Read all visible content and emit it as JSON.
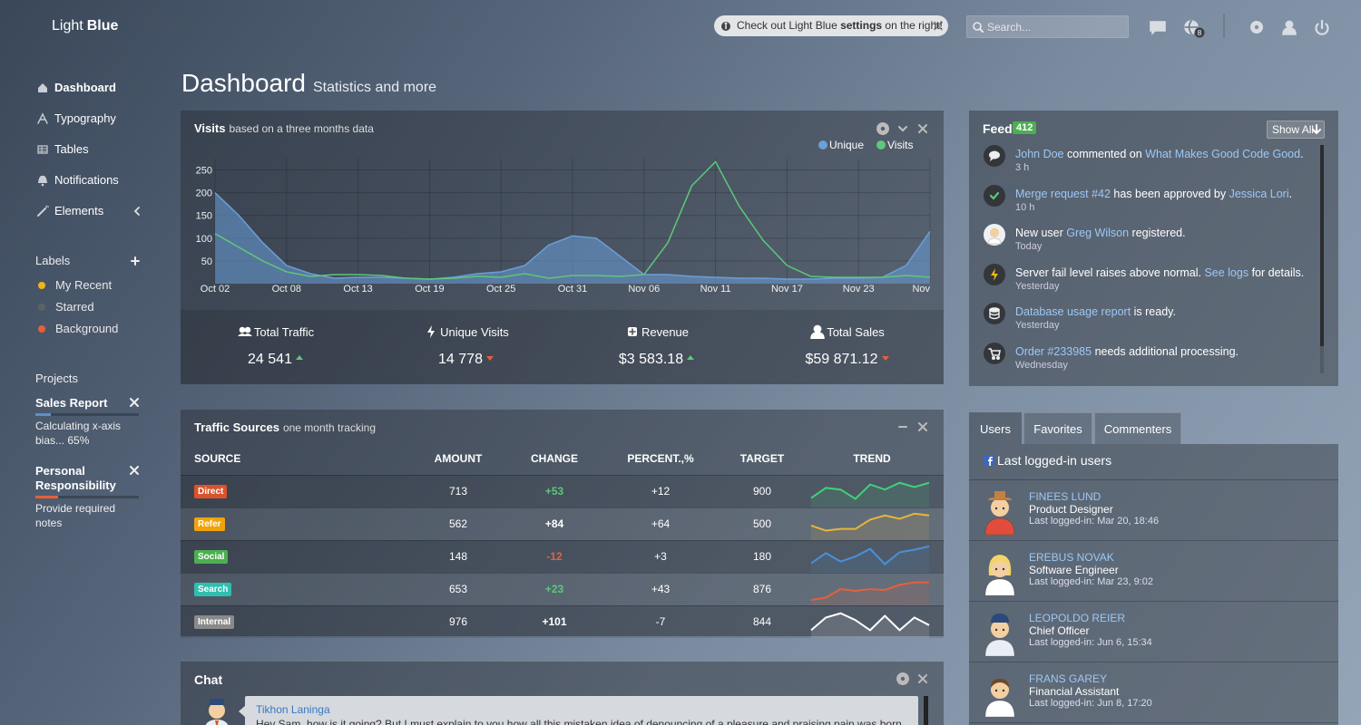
{
  "brand": {
    "light": "Light",
    "bold": "Blue"
  },
  "notice": {
    "before": "Check out Light Blue ",
    "bold": "settings",
    "after": " on the right!"
  },
  "search": {
    "placeholder": "Search..."
  },
  "messages_badge": 8,
  "nav": [
    "Dashboard",
    "Typography",
    "Tables",
    "Notifications",
    "Elements"
  ],
  "active_nav": 0,
  "labels": {
    "title": "Labels",
    "items": [
      {
        "name": "My Recent",
        "color": "#f0b518"
      },
      {
        "name": "Starred",
        "color": "#5d6168"
      },
      {
        "name": "Background",
        "color": "#e5603b"
      }
    ]
  },
  "projects": {
    "title": "Projects",
    "items": [
      {
        "name": "Sales Report",
        "description": "Calculating x-axis bias... 65%",
        "progress": 15,
        "color": "#5a8fd0"
      },
      {
        "name": "Personal Responsibility",
        "description": "Provide required notes",
        "progress": 22,
        "color": "#e5603b"
      }
    ]
  },
  "page": {
    "title": "Dashboard",
    "subtitle": "Statistics and more"
  },
  "visits": {
    "title": "Visits",
    "subtitle": "based on a three months data",
    "chart": {
      "type": "area",
      "categories": [
        "Oct 02",
        null,
        null,
        "Oct 08",
        null,
        null,
        "Oct 13",
        null,
        null,
        "Oct 19",
        null,
        null,
        "Oct 25",
        null,
        null,
        "Oct 31",
        null,
        null,
        "Nov 06",
        null,
        null,
        "Nov 11",
        null,
        null,
        "Nov 17",
        null,
        null,
        "Nov 23",
        null,
        null,
        "Nov"
      ],
      "series": [
        {
          "name": "Unique",
          "color": "#6a9fd8",
          "values": [
            200,
            150,
            90,
            40,
            22,
            12,
            14,
            14,
            12,
            10,
            14,
            22,
            26,
            40,
            85,
            105,
            100,
            60,
            20,
            20,
            16,
            14,
            12,
            12,
            10,
            10,
            12,
            12,
            14,
            40,
            115
          ]
        },
        {
          "name": "Visits",
          "color": "#5cc87a",
          "values": [
            110,
            80,
            50,
            26,
            16,
            20,
            20,
            18,
            12,
            10,
            12,
            16,
            14,
            22,
            12,
            18,
            18,
            16,
            20,
            90,
            215,
            268,
            170,
            95,
            40,
            16,
            14,
            14,
            14,
            18,
            14
          ]
        }
      ],
      "ylim": [
        0,
        275
      ],
      "yticks": [
        50,
        100,
        150,
        200,
        250
      ],
      "grid": true,
      "legend": "top-right"
    },
    "stats": [
      {
        "label": "Total Traffic",
        "value": "24 541",
        "trend": "up"
      },
      {
        "label": "Unique Visits",
        "value": "14 778",
        "trend": "down"
      },
      {
        "label": "Revenue",
        "value": "$3 583.18",
        "trend": "up"
      },
      {
        "label": "Total Sales",
        "value": "$59 871.12",
        "trend": "down"
      }
    ]
  },
  "traffic": {
    "title": "Traffic Sources",
    "subtitle": "one month tracking",
    "columns": [
      "SOURCE",
      "AMOUNT",
      "CHANGE",
      "PERCENT.,%",
      "TARGET",
      "TREND"
    ],
    "trend_ylim": [
      0,
      30
    ],
    "rows": [
      {
        "source": "Direct",
        "color": "#d9532c",
        "amount": 713,
        "change": "+53",
        "change_color": "#5cc87a",
        "percent": "+12",
        "target": 900,
        "trend": [
          8,
          20,
          18,
          7,
          24,
          18,
          26,
          21,
          26
        ],
        "trend_color": "#3fd17a"
      },
      {
        "source": "Refer",
        "color": "#f0a30a",
        "amount": 562,
        "change": "+84",
        "change_color": "#ffffff",
        "percent": "+64",
        "target": 500,
        "trend": [
          14,
          8,
          10,
          10,
          21,
          26,
          22,
          28,
          26
        ],
        "trend_color": "#e8b53a"
      },
      {
        "source": "Social",
        "color": "#4caf50",
        "amount": 148,
        "change": "-12",
        "change_color": "#e5603b",
        "percent": "+3",
        "target": 180,
        "trend": [
          8,
          20,
          10,
          16,
          25,
          7,
          21,
          24,
          28
        ],
        "trend_color": "#4a90d9"
      },
      {
        "source": "Search",
        "color": "#2fbfb0",
        "amount": 653,
        "change": "+23",
        "change_color": "#5cc87a",
        "percent": "+43",
        "target": 876,
        "trend": [
          3,
          6,
          16,
          14,
          16,
          15,
          21,
          24,
          24
        ],
        "trend_color": "#e5603b"
      },
      {
        "source": "Internal",
        "color": "#8a8a8a",
        "amount": 976,
        "change": "+101",
        "change_color": "#ffffff",
        "percent": "-7",
        "target": 844,
        "trend": [
          6,
          21,
          26,
          18,
          6,
          23,
          6,
          21,
          12
        ],
        "trend_color": "#ffffff"
      }
    ]
  },
  "chat": {
    "title": "Chat",
    "messages": [
      {
        "author": "Tikhon Laninga",
        "text": "Hey Sam, how is it going? But I must explain to you how all this mistaken idea of denouncing of a pleasure and praising pain was born"
      }
    ]
  },
  "feed": {
    "title": "Feed",
    "count": 412,
    "button": "Show All",
    "items": [
      {
        "parts": [
          {
            "text": "John Doe",
            "link": true
          },
          {
            "text": " commented on ",
            "link": false
          },
          {
            "text": "What Makes Good Code Good",
            "link": true
          },
          {
            "text": ".",
            "link": false
          }
        ],
        "time": "3 h"
      },
      {
        "parts": [
          {
            "text": "Merge request #42",
            "link": true
          },
          {
            "text": " has been approved by ",
            "link": false
          },
          {
            "text": "Jessica Lori",
            "link": true
          },
          {
            "text": ".",
            "link": false
          }
        ],
        "time": "10 h"
      },
      {
        "parts": [
          {
            "text": "New user ",
            "link": false
          },
          {
            "text": "Greg Wilson",
            "link": true
          },
          {
            "text": " registered.",
            "link": false
          }
        ],
        "time": "Today"
      },
      {
        "parts": [
          {
            "text": "Server fail level raises above normal. ",
            "link": false
          },
          {
            "text": "See logs",
            "link": true
          },
          {
            "text": " for details.",
            "link": false
          }
        ],
        "time": "Yesterday"
      },
      {
        "parts": [
          {
            "text": "Database usage report",
            "link": true
          },
          {
            "text": " is ready.",
            "link": false
          }
        ],
        "time": "Yesterday"
      },
      {
        "parts": [
          {
            "text": "Order #233985",
            "link": true
          },
          {
            "text": " needs additional processing.",
            "link": false
          }
        ],
        "time": "Wednesday"
      }
    ]
  },
  "users": {
    "tabs": [
      "Users",
      "Favorites",
      "Commenters"
    ],
    "active_tab": 0,
    "heading": "Last logged-in users",
    "items": [
      {
        "name": "FINEES LUND",
        "role": "Product Designer",
        "last": "Last logged-in: Mar 20, 18:46"
      },
      {
        "name": "EREBUS NOVAK",
        "role": "Software Engineer",
        "last": "Last logged-in: Mar 23, 9:02"
      },
      {
        "name": "LEOPOLDO REIER",
        "role": "Chief Officer",
        "last": "Last logged-in: Jun 6, 15:34"
      },
      {
        "name": "FRANS GAREY",
        "role": "Financial Assistant",
        "last": "Last logged-in: Jun 8, 17:20"
      }
    ]
  }
}
